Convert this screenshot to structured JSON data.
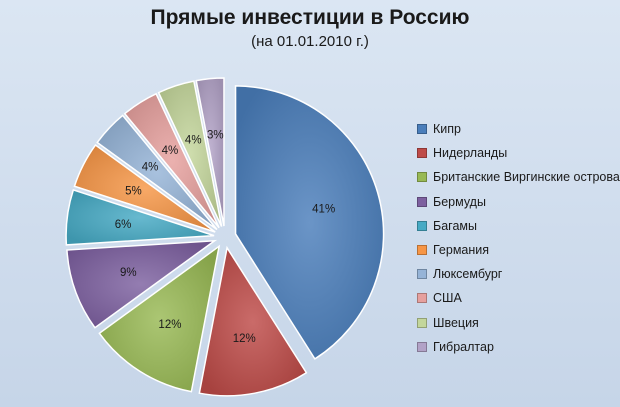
{
  "chart_data": {
    "type": "pie",
    "title": "Прямые инвестиции в Россию",
    "subtitle": "(на 01.01.2010 г.)",
    "legend_position": "right",
    "exploded": true,
    "slices": [
      {
        "label": "Кипр",
        "value": 41,
        "value_label": "41%",
        "color": "#4a7ebb"
      },
      {
        "label": "Нидерланды",
        "value": 12,
        "value_label": "12%",
        "color": "#be4b48"
      },
      {
        "label": "Британские Виргинские острова",
        "value": 12,
        "value_label": "12%",
        "color": "#98b954"
      },
      {
        "label": "Бермуды",
        "value": 9,
        "value_label": "9%",
        "color": "#7d60a0"
      },
      {
        "label": "Багамы",
        "value": 6,
        "value_label": "6%",
        "color": "#46aac5"
      },
      {
        "label": "Германия",
        "value": 5,
        "value_label": "5%",
        "color": "#f79646"
      },
      {
        "label": "Люксембург",
        "value": 4,
        "value_label": "4%",
        "color": "#95b3d7"
      },
      {
        "label": "США",
        "value": 4,
        "value_label": "4%",
        "color": "#e6a09e"
      },
      {
        "label": "Швеция",
        "value": 4,
        "value_label": "4%",
        "color": "#c3d69b"
      },
      {
        "label": "Гибралтар",
        "value": 3,
        "value_label": "3%",
        "color": "#b2a2c7"
      }
    ]
  }
}
